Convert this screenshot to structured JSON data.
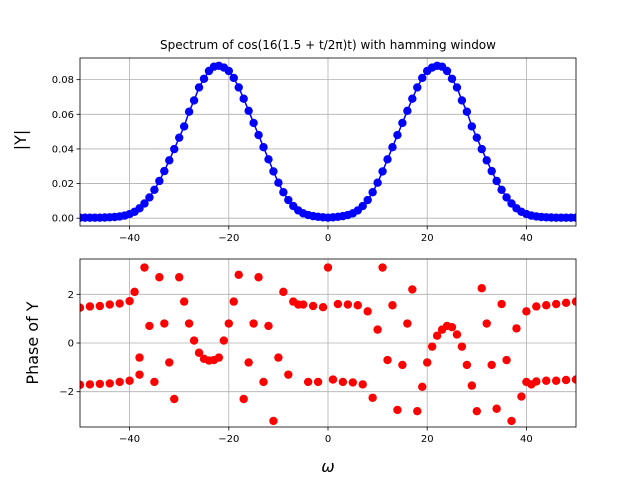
{
  "chart_data": [
    {
      "type": "line",
      "title": "Spectrum of cos(16(1.5 + t/2π)t) with hamming window",
      "ylabel": "|Y|",
      "xlabel": "",
      "xlim": [
        -50,
        50
      ],
      "ylim": [
        -0.0045,
        0.0925
      ],
      "xticks": [
        -40,
        -20,
        0,
        20,
        40
      ],
      "yticks": [
        0.0,
        0.02,
        0.04,
        0.06,
        0.08
      ],
      "ytick_labels": [
        "0.00",
        "0.02",
        "0.04",
        "0.06",
        "0.08"
      ],
      "grid": true,
      "series": [
        {
          "color": "#0000ff",
          "marker": "circle",
          "line": true,
          "x": [
            -50,
            -49,
            -48,
            -47,
            -46,
            -45,
            -44,
            -43,
            -42,
            -41,
            -40,
            -39,
            -38,
            -37,
            -36,
            -35,
            -34,
            -33,
            -32,
            -31,
            -30,
            -29,
            -28,
            -27,
            -26,
            -25,
            -24,
            -23,
            -22,
            -21,
            -20,
            -19,
            -18,
            -17,
            -16,
            -15,
            -14,
            -13,
            -12,
            -11,
            -10,
            -9,
            -8,
            -7,
            -6,
            -5,
            -4,
            -3,
            -2,
            -1,
            0,
            1,
            2,
            3,
            4,
            5,
            6,
            7,
            8,
            9,
            10,
            11,
            12,
            13,
            14,
            15,
            16,
            17,
            18,
            19,
            20,
            21,
            22,
            23,
            24,
            25,
            26,
            27,
            28,
            29,
            30,
            31,
            32,
            33,
            34,
            35,
            36,
            37,
            38,
            39,
            40,
            41,
            42,
            43,
            44,
            45,
            46,
            47,
            48,
            49,
            50
          ],
          "y": [
            0.0003,
            0.0003,
            0.0003,
            0.0003,
            0.0003,
            0.0004,
            0.0005,
            0.0007,
            0.001,
            0.0015,
            0.0024,
            0.0037,
            0.0057,
            0.0085,
            0.012,
            0.0164,
            0.0215,
            0.0272,
            0.0334,
            0.0399,
            0.0465,
            0.053,
            0.0615,
            0.068,
            0.0755,
            0.0805,
            0.085,
            0.0875,
            0.088,
            0.087,
            0.085,
            0.081,
            0.0755,
            0.069,
            0.062,
            0.055,
            0.048,
            0.041,
            0.034,
            0.027,
            0.0205,
            0.015,
            0.0105,
            0.007,
            0.0045,
            0.0028,
            0.0018,
            0.0012,
            0.0008,
            0.0005,
            0.0003,
            0.0005,
            0.0008,
            0.0012,
            0.0018,
            0.0028,
            0.0045,
            0.007,
            0.0105,
            0.015,
            0.0205,
            0.027,
            0.034,
            0.041,
            0.048,
            0.055,
            0.062,
            0.069,
            0.0755,
            0.081,
            0.085,
            0.087,
            0.088,
            0.0875,
            0.085,
            0.0805,
            0.0755,
            0.068,
            0.0615,
            0.053,
            0.0465,
            0.0399,
            0.0334,
            0.0272,
            0.0215,
            0.0164,
            0.012,
            0.0085,
            0.0057,
            0.0037,
            0.0024,
            0.0015,
            0.001,
            0.0007,
            0.0005,
            0.0004,
            0.0003,
            0.0003,
            0.0003,
            0.0003,
            0.0003
          ]
        }
      ]
    },
    {
      "type": "scatter",
      "title": "",
      "ylabel": "Phase of Y",
      "xlabel": "ω",
      "xlim": [
        -50,
        50
      ],
      "ylim": [
        -3.45,
        3.45
      ],
      "xticks": [
        -40,
        -20,
        0,
        20,
        40
      ],
      "yticks": [
        -2,
        0,
        2
      ],
      "ytick_labels": [
        "−2",
        "0",
        "2"
      ],
      "grid": true,
      "series": [
        {
          "color": "#ff0000",
          "marker": "circle",
          "line": false,
          "x": [
            -50,
            -50,
            -48,
            -48,
            -46,
            -46,
            -44,
            -44,
            -42,
            -42,
            -40,
            -40,
            -39,
            -38,
            -38,
            -37,
            -36,
            -35,
            -34,
            -33,
            -32,
            -31,
            -30,
            -29,
            -28,
            -27,
            -26,
            -25,
            -24,
            -23,
            -22,
            -21,
            -20,
            -19,
            -18,
            -17,
            -16,
            -15,
            -14,
            -13,
            -12,
            -11,
            -10,
            -9,
            -8,
            -7,
            -6,
            -5,
            -4,
            -3,
            -2,
            -1,
            0,
            1,
            2,
            3,
            4,
            5,
            6,
            7,
            8,
            9,
            10,
            11,
            12,
            13,
            14,
            15,
            16,
            17,
            18,
            19,
            20,
            21,
            22,
            23,
            24,
            25,
            26,
            27,
            28,
            29,
            30,
            31,
            32,
            33,
            34,
            35,
            36,
            37,
            38,
            39,
            40,
            41,
            42,
            44,
            46,
            48,
            50,
            40,
            42,
            44,
            46,
            48,
            50
          ],
          "y": [
            1.45,
            -1.72,
            1.5,
            -1.7,
            1.52,
            -1.68,
            1.58,
            -1.66,
            1.62,
            -1.6,
            1.72,
            -1.55,
            2.1,
            -1.3,
            -0.6,
            3.1,
            0.7,
            -1.6,
            2.7,
            0.8,
            -0.8,
            -2.3,
            2.7,
            1.7,
            0.8,
            0.1,
            -0.4,
            -0.65,
            -0.72,
            -0.7,
            -0.6,
            0.1,
            0.8,
            1.7,
            2.8,
            -2.3,
            -0.8,
            0.8,
            2.7,
            -1.6,
            0.7,
            -3.2,
            -0.6,
            2.1,
            -1.3,
            1.7,
            1.58,
            1.58,
            -1.6,
            1.52,
            -1.6,
            1.47,
            3.1,
            -1.5,
            1.6,
            -1.6,
            1.58,
            -1.62,
            1.55,
            -1.7,
            1.3,
            -2.25,
            0.55,
            3.1,
            -0.7,
            1.55,
            -2.75,
            -0.9,
            0.8,
            2.2,
            -2.8,
            -1.8,
            -0.8,
            -0.15,
            0.3,
            0.55,
            0.7,
            0.65,
            0.35,
            -0.15,
            -0.9,
            -1.75,
            -2.8,
            2.25,
            0.8,
            -0.9,
            -2.7,
            1.6,
            -0.7,
            -3.2,
            0.6,
            -2.2,
            1.3,
            -1.7,
            1.5,
            1.55,
            1.6,
            1.65,
            1.7,
            -1.6,
            -1.58,
            -1.55,
            -1.55,
            -1.52,
            -1.5
          ]
        }
      ]
    }
  ]
}
